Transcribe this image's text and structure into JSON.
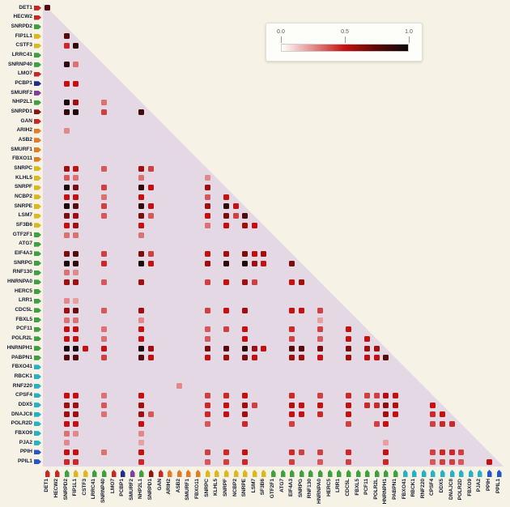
{
  "page": {
    "background": "#f7f2e6"
  },
  "legend": {
    "ticks": [
      "0.0",
      "0.5",
      "1.0"
    ],
    "gradient": [
      "#ffffff",
      "#e38a8a",
      "#c61010",
      "#5e0808",
      "#0a0a0a"
    ]
  },
  "chart_data": {
    "type": "heatmap",
    "layout": "lower-triangular",
    "title": "",
    "background_triangle_color": "#e3d8e4",
    "colorscale": {
      "min": 0.0,
      "mid": 0.5,
      "max": 1.0,
      "min_color": "#ffffff",
      "mid_color": "#c61010",
      "max_color": "#0a0a0a"
    },
    "genes": [
      {
        "name": "DET1",
        "color": "#c62828"
      },
      {
        "name": "HECW2",
        "color": "#c62828"
      },
      {
        "name": "SNRPD2",
        "color": "#3fa042"
      },
      {
        "name": "FIP1L1",
        "color": "#d9b821"
      },
      {
        "name": "CSTF3",
        "color": "#d9b821"
      },
      {
        "name": "LRRC41",
        "color": "#3fa042"
      },
      {
        "name": "SNRNP40",
        "color": "#3fa042"
      },
      {
        "name": "LMO7",
        "color": "#c62828"
      },
      {
        "name": "PCBP1",
        "color": "#1c2f8f"
      },
      {
        "name": "SMURF2",
        "color": "#7b3fa0"
      },
      {
        "name": "NHP2L1",
        "color": "#3fa042"
      },
      {
        "name": "SNRPD1",
        "color": "#8c1414"
      },
      {
        "name": "GAN",
        "color": "#c62828"
      },
      {
        "name": "ARIH2",
        "color": "#e07b27"
      },
      {
        "name": "ASB2",
        "color": "#e07b27"
      },
      {
        "name": "SMURF1",
        "color": "#e07b27"
      },
      {
        "name": "FBXO11",
        "color": "#e07b27"
      },
      {
        "name": "SNRPC",
        "color": "#d9b821"
      },
      {
        "name": "KLHL5",
        "color": "#d9b821"
      },
      {
        "name": "SNRPF",
        "color": "#d9b821"
      },
      {
        "name": "NCBP2",
        "color": "#d9b821"
      },
      {
        "name": "SNRPE",
        "color": "#d9b821"
      },
      {
        "name": "LSM7",
        "color": "#d9b821"
      },
      {
        "name": "SF3B6",
        "color": "#d9b821"
      },
      {
        "name": "GTF2F1",
        "color": "#3fa042"
      },
      {
        "name": "ATG7",
        "color": "#3fa042"
      },
      {
        "name": "EIF4A3",
        "color": "#3fa042"
      },
      {
        "name": "SNRPG",
        "color": "#3fa042"
      },
      {
        "name": "RNF130",
        "color": "#3fa042"
      },
      {
        "name": "HNRNPA0",
        "color": "#3fa042"
      },
      {
        "name": "HERC5",
        "color": "#3fa042"
      },
      {
        "name": "LRR1",
        "color": "#3fa042"
      },
      {
        "name": "CDC5L",
        "color": "#3fa042"
      },
      {
        "name": "FBXL5",
        "color": "#3fa042"
      },
      {
        "name": "PCF11",
        "color": "#3fa042"
      },
      {
        "name": "POLR2L",
        "color": "#3fa042"
      },
      {
        "name": "HNRNPH1",
        "color": "#3fa042"
      },
      {
        "name": "PABPN1",
        "color": "#3fa042"
      },
      {
        "name": "FBXO41",
        "color": "#2ab0c5"
      },
      {
        "name": "RBCK1",
        "color": "#2ab0c5"
      },
      {
        "name": "RNF220",
        "color": "#2ab0c5"
      },
      {
        "name": "CPSF4",
        "color": "#2ab0c5"
      },
      {
        "name": "DDX5",
        "color": "#2ab0c5"
      },
      {
        "name": "DNAJC8",
        "color": "#2ab0c5"
      },
      {
        "name": "POLR2D",
        "color": "#2ab0c5"
      },
      {
        "name": "FBXO9",
        "color": "#2ab0c5"
      },
      {
        "name": "PJA2",
        "color": "#2ab0c5"
      },
      {
        "name": "PPIH",
        "color": "#2457c5"
      },
      {
        "name": "PPIL1",
        "color": "#2457c5"
      }
    ],
    "cells": [
      [
        0,
        0,
        0.8
      ],
      [
        3,
        2,
        0.8
      ],
      [
        4,
        2,
        0.45
      ],
      [
        4,
        3,
        0.9
      ],
      [
        6,
        2,
        0.9
      ],
      [
        6,
        3,
        0.3
      ],
      [
        8,
        2,
        0.5
      ],
      [
        8,
        3,
        0.5
      ],
      [
        10,
        2,
        0.95
      ],
      [
        10,
        3,
        0.6
      ],
      [
        10,
        6,
        0.3
      ],
      [
        11,
        2,
        0.9
      ],
      [
        11,
        3,
        0.95
      ],
      [
        11,
        6,
        0.4
      ],
      [
        11,
        10,
        0.85
      ],
      [
        13,
        2,
        0.25
      ],
      [
        17,
        2,
        0.6
      ],
      [
        17,
        3,
        0.5
      ],
      [
        17,
        6,
        0.35
      ],
      [
        17,
        10,
        0.6
      ],
      [
        17,
        11,
        0.4
      ],
      [
        18,
        2,
        0.35
      ],
      [
        18,
        3,
        0.3
      ],
      [
        18,
        10,
        0.3
      ],
      [
        18,
        17,
        0.25
      ],
      [
        19,
        2,
        0.95
      ],
      [
        19,
        3,
        0.7
      ],
      [
        19,
        6,
        0.4
      ],
      [
        19,
        10,
        0.9
      ],
      [
        19,
        11,
        0.5
      ],
      [
        19,
        17,
        0.6
      ],
      [
        20,
        2,
        0.5
      ],
      [
        20,
        3,
        0.5
      ],
      [
        20,
        6,
        0.3
      ],
      [
        20,
        10,
        0.5
      ],
      [
        20,
        17,
        0.35
      ],
      [
        20,
        19,
        0.5
      ],
      [
        21,
        2,
        0.95
      ],
      [
        21,
        3,
        0.8
      ],
      [
        21,
        6,
        0.4
      ],
      [
        21,
        10,
        0.9
      ],
      [
        21,
        11,
        0.5
      ],
      [
        21,
        17,
        0.6
      ],
      [
        21,
        19,
        0.9
      ],
      [
        21,
        20,
        0.5
      ],
      [
        22,
        2,
        0.7
      ],
      [
        22,
        3,
        0.6
      ],
      [
        22,
        6,
        0.35
      ],
      [
        22,
        10,
        0.7
      ],
      [
        22,
        11,
        0.35
      ],
      [
        22,
        17,
        0.5
      ],
      [
        22,
        19,
        0.7
      ],
      [
        22,
        20,
        0.4
      ],
      [
        22,
        21,
        0.8
      ],
      [
        23,
        2,
        0.5
      ],
      [
        23,
        3,
        0.6
      ],
      [
        23,
        10,
        0.5
      ],
      [
        23,
        17,
        0.3
      ],
      [
        23,
        19,
        0.5
      ],
      [
        23,
        21,
        0.6
      ],
      [
        23,
        22,
        0.5
      ],
      [
        24,
        2,
        0.3
      ],
      [
        24,
        3,
        0.3
      ],
      [
        24,
        10,
        0.3
      ],
      [
        26,
        2,
        0.7
      ],
      [
        26,
        3,
        0.8
      ],
      [
        26,
        6,
        0.4
      ],
      [
        26,
        10,
        0.7
      ],
      [
        26,
        11,
        0.4
      ],
      [
        26,
        17,
        0.5
      ],
      [
        26,
        19,
        0.6
      ],
      [
        26,
        21,
        0.7
      ],
      [
        26,
        22,
        0.5
      ],
      [
        26,
        23,
        0.6
      ],
      [
        27,
        2,
        0.95
      ],
      [
        27,
        3,
        0.9
      ],
      [
        27,
        6,
        0.45
      ],
      [
        27,
        10,
        0.95
      ],
      [
        27,
        11,
        0.5
      ],
      [
        27,
        17,
        0.6
      ],
      [
        27,
        19,
        0.9
      ],
      [
        27,
        21,
        0.95
      ],
      [
        27,
        22,
        0.6
      ],
      [
        27,
        23,
        0.5
      ],
      [
        27,
        26,
        0.7
      ],
      [
        28,
        2,
        0.3
      ],
      [
        28,
        3,
        0.25
      ],
      [
        29,
        2,
        0.6
      ],
      [
        29,
        3,
        0.6
      ],
      [
        29,
        6,
        0.35
      ],
      [
        29,
        10,
        0.6
      ],
      [
        29,
        17,
        0.4
      ],
      [
        29,
        19,
        0.5
      ],
      [
        29,
        21,
        0.6
      ],
      [
        29,
        22,
        0.4
      ],
      [
        29,
        26,
        0.5
      ],
      [
        29,
        27,
        0.6
      ],
      [
        31,
        2,
        0.25
      ],
      [
        31,
        3,
        0.2
      ],
      [
        32,
        2,
        0.6
      ],
      [
        32,
        3,
        0.75
      ],
      [
        32,
        6,
        0.35
      ],
      [
        32,
        10,
        0.6
      ],
      [
        32,
        17,
        0.4
      ],
      [
        32,
        19,
        0.5
      ],
      [
        32,
        21,
        0.6
      ],
      [
        32,
        26,
        0.5
      ],
      [
        32,
        27,
        0.5
      ],
      [
        32,
        29,
        0.4
      ],
      [
        33,
        2,
        0.3
      ],
      [
        33,
        3,
        0.3
      ],
      [
        33,
        10,
        0.25
      ],
      [
        33,
        29,
        0.2
      ],
      [
        34,
        2,
        0.5
      ],
      [
        34,
        3,
        0.5
      ],
      [
        34,
        6,
        0.3
      ],
      [
        34,
        10,
        0.5
      ],
      [
        34,
        17,
        0.35
      ],
      [
        34,
        19,
        0.4
      ],
      [
        34,
        21,
        0.5
      ],
      [
        34,
        26,
        0.45
      ],
      [
        34,
        29,
        0.4
      ],
      [
        34,
        32,
        0.5
      ],
      [
        35,
        2,
        0.5
      ],
      [
        35,
        3,
        0.5
      ],
      [
        35,
        6,
        0.3
      ],
      [
        35,
        10,
        0.5
      ],
      [
        35,
        17,
        0.35
      ],
      [
        35,
        21,
        0.5
      ],
      [
        35,
        26,
        0.4
      ],
      [
        35,
        29,
        0.35
      ],
      [
        35,
        32,
        0.5
      ],
      [
        35,
        34,
        0.5
      ],
      [
        36,
        2,
        0.95
      ],
      [
        36,
        3,
        0.95
      ],
      [
        36,
        4,
        0.5
      ],
      [
        36,
        6,
        0.5
      ],
      [
        36,
        10,
        0.95
      ],
      [
        36,
        11,
        0.6
      ],
      [
        36,
        17,
        0.7
      ],
      [
        36,
        19,
        0.8
      ],
      [
        36,
        21,
        0.9
      ],
      [
        36,
        22,
        0.6
      ],
      [
        36,
        23,
        0.5
      ],
      [
        36,
        26,
        0.8
      ],
      [
        36,
        27,
        0.8
      ],
      [
        36,
        29,
        0.7
      ],
      [
        36,
        32,
        0.7
      ],
      [
        36,
        34,
        0.6
      ],
      [
        36,
        35,
        0.6
      ],
      [
        37,
        2,
        0.8
      ],
      [
        37,
        3,
        0.8
      ],
      [
        37,
        6,
        0.4
      ],
      [
        37,
        10,
        0.8
      ],
      [
        37,
        11,
        0.5
      ],
      [
        37,
        17,
        0.5
      ],
      [
        37,
        19,
        0.6
      ],
      [
        37,
        21,
        0.7
      ],
      [
        37,
        22,
        0.5
      ],
      [
        37,
        26,
        0.6
      ],
      [
        37,
        27,
        0.6
      ],
      [
        37,
        29,
        0.5
      ],
      [
        37,
        32,
        0.6
      ],
      [
        37,
        34,
        0.5
      ],
      [
        37,
        35,
        0.5
      ],
      [
        37,
        36,
        0.8
      ],
      [
        40,
        14,
        0.25
      ],
      [
        41,
        2,
        0.5
      ],
      [
        41,
        3,
        0.5
      ],
      [
        41,
        6,
        0.3
      ],
      [
        41,
        10,
        0.5
      ],
      [
        41,
        17,
        0.4
      ],
      [
        41,
        19,
        0.45
      ],
      [
        41,
        21,
        0.5
      ],
      [
        41,
        26,
        0.45
      ],
      [
        41,
        29,
        0.4
      ],
      [
        41,
        32,
        0.45
      ],
      [
        41,
        34,
        0.4
      ],
      [
        41,
        35,
        0.4
      ],
      [
        41,
        36,
        0.55
      ],
      [
        41,
        37,
        0.5
      ],
      [
        42,
        2,
        0.6
      ],
      [
        42,
        3,
        0.6
      ],
      [
        42,
        6,
        0.35
      ],
      [
        42,
        10,
        0.6
      ],
      [
        42,
        17,
        0.45
      ],
      [
        42,
        19,
        0.5
      ],
      [
        42,
        21,
        0.6
      ],
      [
        42,
        22,
        0.4
      ],
      [
        42,
        26,
        0.55
      ],
      [
        42,
        27,
        0.5
      ],
      [
        42,
        29,
        0.5
      ],
      [
        42,
        32,
        0.5
      ],
      [
        42,
        34,
        0.45
      ],
      [
        42,
        35,
        0.45
      ],
      [
        42,
        36,
        0.65
      ],
      [
        42,
        37,
        0.55
      ],
      [
        42,
        41,
        0.5
      ],
      [
        43,
        2,
        0.6
      ],
      [
        43,
        3,
        0.6
      ],
      [
        43,
        6,
        0.3
      ],
      [
        43,
        10,
        0.6
      ],
      [
        43,
        11,
        0.35
      ],
      [
        43,
        17,
        0.45
      ],
      [
        43,
        19,
        0.5
      ],
      [
        43,
        21,
        0.6
      ],
      [
        43,
        26,
        0.5
      ],
      [
        43,
        27,
        0.5
      ],
      [
        43,
        29,
        0.45
      ],
      [
        43,
        32,
        0.5
      ],
      [
        43,
        36,
        0.6
      ],
      [
        43,
        37,
        0.5
      ],
      [
        43,
        41,
        0.45
      ],
      [
        43,
        42,
        0.5
      ],
      [
        44,
        2,
        0.5
      ],
      [
        44,
        3,
        0.5
      ],
      [
        44,
        10,
        0.5
      ],
      [
        44,
        17,
        0.35
      ],
      [
        44,
        21,
        0.45
      ],
      [
        44,
        26,
        0.4
      ],
      [
        44,
        32,
        0.4
      ],
      [
        44,
        35,
        0.4
      ],
      [
        44,
        36,
        0.5
      ],
      [
        44,
        41,
        0.4
      ],
      [
        44,
        42,
        0.45
      ],
      [
        44,
        43,
        0.45
      ],
      [
        45,
        2,
        0.3
      ],
      [
        45,
        3,
        0.25
      ],
      [
        45,
        10,
        0.25
      ],
      [
        46,
        2,
        0.25
      ],
      [
        46,
        10,
        0.2
      ],
      [
        46,
        36,
        0.2
      ],
      [
        47,
        2,
        0.5
      ],
      [
        47,
        3,
        0.5
      ],
      [
        47,
        6,
        0.3
      ],
      [
        47,
        10,
        0.5
      ],
      [
        47,
        17,
        0.4
      ],
      [
        47,
        19,
        0.45
      ],
      [
        47,
        21,
        0.5
      ],
      [
        47,
        26,
        0.45
      ],
      [
        47,
        27,
        0.4
      ],
      [
        47,
        29,
        0.4
      ],
      [
        47,
        32,
        0.45
      ],
      [
        47,
        36,
        0.5
      ],
      [
        47,
        41,
        0.4
      ],
      [
        47,
        42,
        0.45
      ],
      [
        47,
        43,
        0.45
      ],
      [
        47,
        44,
        0.4
      ],
      [
        48,
        2,
        0.45
      ],
      [
        48,
        3,
        0.45
      ],
      [
        48,
        10,
        0.45
      ],
      [
        48,
        17,
        0.35
      ],
      [
        48,
        19,
        0.4
      ],
      [
        48,
        21,
        0.45
      ],
      [
        48,
        26,
        0.4
      ],
      [
        48,
        29,
        0.35
      ],
      [
        48,
        32,
        0.4
      ],
      [
        48,
        36,
        0.45
      ],
      [
        48,
        41,
        0.35
      ],
      [
        48,
        42,
        0.4
      ],
      [
        48,
        43,
        0.4
      ],
      [
        48,
        44,
        0.35
      ],
      [
        48,
        47,
        0.5
      ]
    ]
  }
}
